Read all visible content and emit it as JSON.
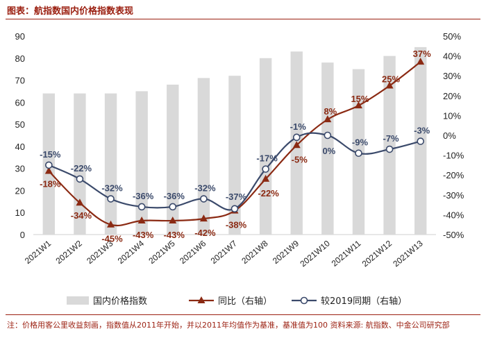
{
  "header": {
    "title": "图表：航指数国内价格指数表现"
  },
  "footnote": "注：价格用客公里收益刻画，指数值从2011年开始，并以2011年均值作为基准，基准值为100 资料来源: 航指数、中金公司研究部",
  "chart_data": {
    "type": "bar",
    "categories": [
      "2021W1",
      "2021W2",
      "2021W3",
      "2021W4",
      "2021W5",
      "2021W6",
      "2021W7",
      "2021W8",
      "2021W9",
      "2021W10",
      "2021W11",
      "2021W12",
      "2021W13"
    ],
    "y_left": {
      "min": 0,
      "max": 90,
      "step": 10,
      "ticks": [
        "0",
        "10",
        "20",
        "30",
        "40",
        "50",
        "60",
        "70",
        "80",
        "90"
      ]
    },
    "y_right": {
      "min": -50,
      "max": 50,
      "step": 10,
      "ticks": [
        "-50%",
        "-40%",
        "-30%",
        "-20%",
        "-10%",
        "0%",
        "10%",
        "20%",
        "30%",
        "40%",
        "50%"
      ]
    },
    "grid": false,
    "legend_position": "bottom",
    "series": [
      {
        "name": "国内价格指数",
        "type": "bar",
        "axis": "left",
        "color": "#d9d9d9",
        "values": [
          64,
          64,
          64,
          65,
          68,
          71,
          72,
          80,
          83,
          78,
          75,
          81,
          85
        ]
      },
      {
        "name": "同比（右轴）",
        "type": "line",
        "axis": "right",
        "color": "#8b2a13",
        "marker": "triangle",
        "values": [
          -18,
          -34,
          -45,
          -43,
          -43,
          -42,
          -38,
          -22,
          -5,
          8,
          15,
          25,
          37
        ],
        "labels": [
          "-18%",
          "-34%",
          "-45%",
          "-43%",
          "-43%",
          "-42%",
          "-38%",
          "-22%",
          "-5%",
          "8%",
          "15%",
          "25%",
          "37%"
        ]
      },
      {
        "name": "较2019同期（右轴）",
        "type": "line",
        "axis": "right",
        "color": "#3b4a6b",
        "marker": "circle",
        "values": [
          -15,
          -22,
          -32,
          -36,
          -36,
          -32,
          -37,
          -17,
          -1,
          0,
          -9,
          -7,
          -3
        ],
        "labels": [
          "-15%",
          "-22%",
          "-32%",
          "-36%",
          "-36%",
          "-32%",
          "-37%",
          "-17%",
          "-1%",
          "0%",
          "-9%",
          "-7%",
          "-3%"
        ]
      }
    ]
  }
}
